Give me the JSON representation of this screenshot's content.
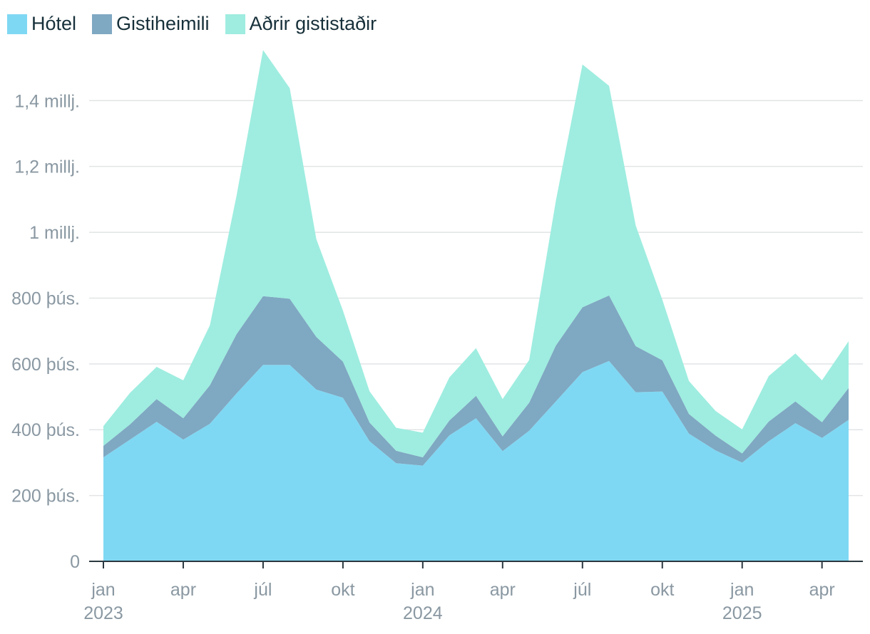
{
  "chart_data": {
    "type": "area",
    "stacked": true,
    "legend_position": "top-left",
    "grid": true,
    "ylim": [
      0,
      1550000
    ],
    "y_ticks": [
      {
        "value": 0,
        "label": "0"
      },
      {
        "value": 200000,
        "label": "200 þús."
      },
      {
        "value": 400000,
        "label": "400 þús."
      },
      {
        "value": 600000,
        "label": "600 þús."
      },
      {
        "value": 800000,
        "label": "800 þús."
      },
      {
        "value": 1000000,
        "label": "1 millj."
      },
      {
        "value": 1200000,
        "label": "1,2 millj."
      },
      {
        "value": 1400000,
        "label": "1,4 millj."
      }
    ],
    "x": [
      "2023-01",
      "2023-02",
      "2023-03",
      "2023-04",
      "2023-05",
      "2023-06",
      "2023-07",
      "2023-08",
      "2023-09",
      "2023-10",
      "2023-11",
      "2023-12",
      "2024-01",
      "2024-02",
      "2024-03",
      "2024-04",
      "2024-05",
      "2024-06",
      "2024-07",
      "2024-08",
      "2024-09",
      "2024-10",
      "2024-11",
      "2024-12",
      "2025-01",
      "2025-02",
      "2025-03",
      "2025-04",
      "2025-05"
    ],
    "x_ticks": [
      {
        "x": "2023-01",
        "label": "jan",
        "year": "2023"
      },
      {
        "x": "2023-04",
        "label": "apr",
        "year": ""
      },
      {
        "x": "2023-07",
        "label": "júl",
        "year": ""
      },
      {
        "x": "2023-10",
        "label": "okt",
        "year": ""
      },
      {
        "x": "2024-01",
        "label": "jan",
        "year": "2024"
      },
      {
        "x": "2024-04",
        "label": "apr",
        "year": ""
      },
      {
        "x": "2024-07",
        "label": "júl",
        "year": ""
      },
      {
        "x": "2024-10",
        "label": "okt",
        "year": ""
      },
      {
        "x": "2025-01",
        "label": "jan",
        "year": "2025"
      },
      {
        "x": "2025-04",
        "label": "apr",
        "year": ""
      }
    ],
    "series": [
      {
        "name": "Hótel",
        "color": "#7fd8f3",
        "values": [
          316000,
          370000,
          424000,
          370000,
          418000,
          510000,
          597000,
          597000,
          522000,
          497000,
          365000,
          298000,
          291000,
          383000,
          435000,
          335000,
          397000,
          486000,
          575000,
          609000,
          514000,
          516000,
          388000,
          337000,
          300000,
          365000,
          420000,
          375000,
          430000
        ]
      },
      {
        "name": "Gistiheimili",
        "color": "#7fa8c2",
        "values": [
          35000,
          46000,
          69000,
          65000,
          117000,
          180000,
          209000,
          201000,
          160000,
          110000,
          57000,
          38000,
          25000,
          45000,
          68000,
          45000,
          85000,
          170000,
          197000,
          199000,
          140000,
          95000,
          60000,
          45000,
          28000,
          60000,
          66000,
          48000,
          97000
        ]
      },
      {
        "name": "Aðrir gististaðir",
        "color": "#9eede0",
        "values": [
          60000,
          96000,
          98000,
          115000,
          182000,
          420000,
          748000,
          640000,
          297000,
          155000,
          95000,
          70000,
          75000,
          131000,
          145000,
          113000,
          130000,
          440000,
          738000,
          637000,
          367000,
          184000,
          100000,
          75000,
          73000,
          138000,
          146000,
          127000,
          142000
        ]
      }
    ]
  }
}
